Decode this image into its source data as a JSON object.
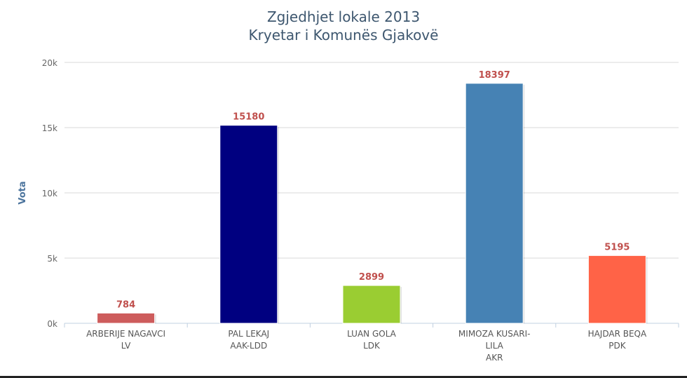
{
  "chart_data": {
    "type": "bar",
    "title": "Zgjedhjet lokale 2013",
    "subtitle": "Kryetar i Komunës Gjakovë",
    "ylabel": "Vota",
    "xlabel": "",
    "ylim": [
      0,
      20000
    ],
    "yticks": [
      "0k",
      "5k",
      "10k",
      "15k",
      "20k"
    ],
    "ytick_values": [
      0,
      5000,
      10000,
      15000,
      20000
    ],
    "categories": [
      [
        "ARBERIJE NAGAVCI",
        "LV"
      ],
      [
        "PAL LEKAJ",
        "AAK-LDD"
      ],
      [
        "LUAN GOLA",
        "LDK"
      ],
      [
        "MIMOZA KUSARI-",
        "LILA",
        "AKR"
      ],
      [
        "HAJDAR BEQA",
        "PDK"
      ]
    ],
    "values": [
      784,
      15180,
      2899,
      18397,
      5195
    ],
    "colors": [
      "#cd5c5c",
      "#000080",
      "#9acd32",
      "#4682b4",
      "#ff6347"
    ],
    "data_label_color": "#c0504d",
    "grid": true,
    "legend": "none"
  }
}
